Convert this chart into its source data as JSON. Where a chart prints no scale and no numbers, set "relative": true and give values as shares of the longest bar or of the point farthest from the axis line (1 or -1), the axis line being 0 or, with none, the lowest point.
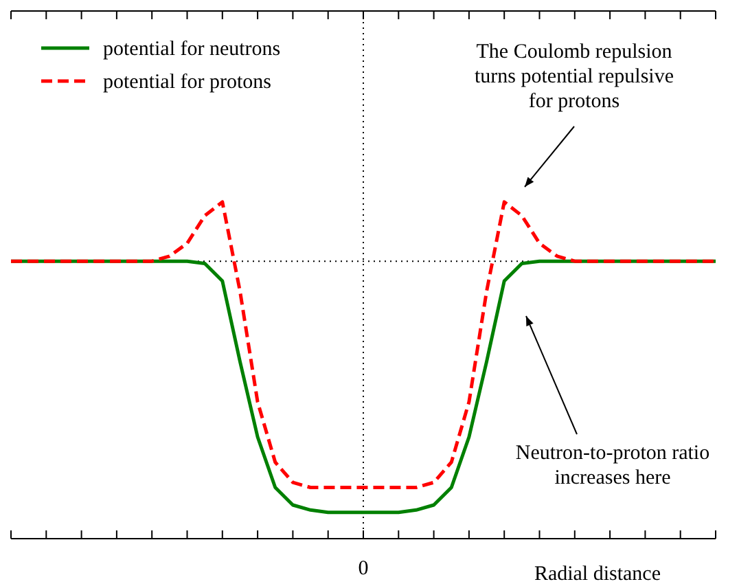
{
  "chart_data": {
    "type": "line",
    "relative": true,
    "xlabel": "Radial distance",
    "categories": [
      null,
      null,
      null,
      null,
      null,
      null,
      null,
      null,
      null,
      null,
      null,
      null,
      null,
      null,
      null,
      null,
      null,
      null,
      null,
      null,
      null,
      null,
      null,
      null,
      null,
      null,
      null,
      null,
      null,
      null,
      null,
      null,
      null,
      null,
      null,
      null,
      null,
      null,
      null,
      null,
      null
    ],
    "series": [
      {
        "name": "potential for neutrons",
        "color": "#008000",
        "line_style": "solid",
        "values": [
          0.824,
          0.824,
          0.824,
          0.824,
          0.824,
          0.824,
          0.824,
          0.824,
          0.824,
          0.824,
          0.824,
          0.817,
          0.765,
          0.526,
          0.302,
          0.152,
          0.1,
          0.085,
          0.078,
          0.078,
          0.078,
          0.078,
          0.078,
          0.085,
          0.1,
          0.152,
          0.302,
          0.526,
          0.765,
          0.817,
          0.824,
          0.824,
          0.824,
          0.824,
          0.824,
          0.824,
          0.824,
          0.824,
          0.824,
          0.824,
          0.824
        ]
      },
      {
        "name": "potential for protons",
        "color": "#ff0000",
        "line_style": "dashed",
        "values": [
          0.824,
          0.824,
          0.824,
          0.824,
          0.824,
          0.824,
          0.824,
          0.824,
          0.824,
          0.839,
          0.877,
          0.959,
          1,
          0.735,
          0.406,
          0.227,
          0.167,
          0.152,
          0.152,
          0.152,
          0.152,
          0.152,
          0.152,
          0.152,
          0.167,
          0.227,
          0.406,
          0.735,
          1,
          0.959,
          0.877,
          0.839,
          0.824,
          0.824,
          0.824,
          0.824,
          0.824,
          0.824,
          0.824,
          0.824,
          0.824
        ]
      }
    ],
    "marker": "none",
    "legend": "top left",
    "ref_lines": [
      {
        "axis": "y",
        "value": 0.824,
        "line_style": "dotted"
      },
      {
        "axis": "x",
        "label": "0",
        "line_style": "dotted"
      }
    ],
    "annotations": [
      "The Coulomb repulsion\nturns potential repulsive\nfor protons",
      "Neutron-to-proton ratio\nincreases here"
    ]
  }
}
